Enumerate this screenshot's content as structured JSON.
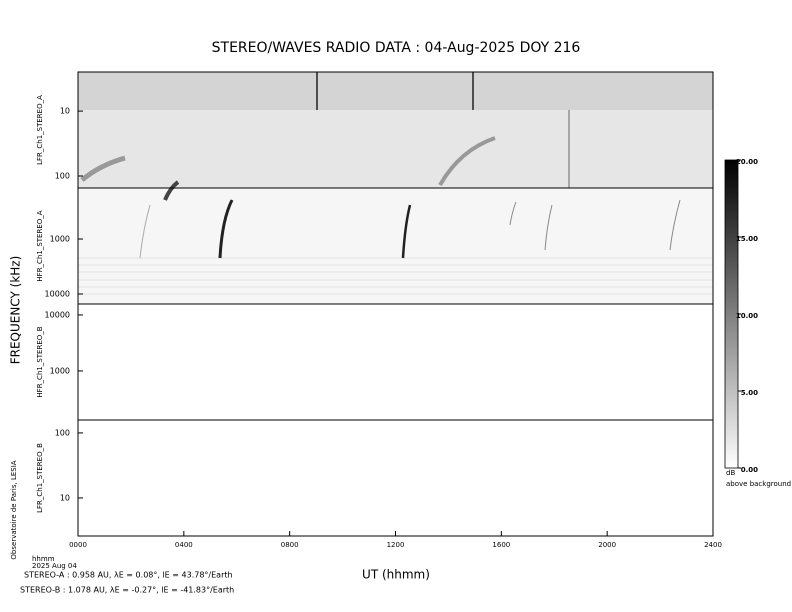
{
  "chart_data": {
    "type": "spectrogram",
    "title": "STEREO/WAVES  RADIO  DATA : 04-Aug-2025  DOY 216",
    "ylabel": "FREQUENCY (kHz)",
    "xlabel": "UT (hhmm)",
    "xlim": [
      0,
      24
    ],
    "xticks": [
      {
        "value": 0,
        "label": "0000"
      },
      {
        "value": 4,
        "label": "0400"
      },
      {
        "value": 8,
        "label": "0800"
      },
      {
        "value": 12,
        "label": "1200"
      },
      {
        "value": 16,
        "label": "1600"
      },
      {
        "value": 20,
        "label": "2000"
      },
      {
        "value": 24,
        "label": "2400"
      }
    ],
    "x_unit_label": "hhmm",
    "date_label": "2025 Aug 04",
    "credit": "Observatoire de Paris, LESIA",
    "panels": [
      {
        "name": "LFR_Ch1_STEREO_A",
        "log": true,
        "inverted": true,
        "ylim": [
          2.5,
          153
        ],
        "yticks": [
          10,
          100
        ]
      },
      {
        "name": "HFR_Ch1_STEREO_A",
        "log": true,
        "inverted": true,
        "ylim": [
          118,
          15200
        ],
        "yticks": [
          1000,
          10000
        ]
      },
      {
        "name": "HFR_Ch1_STEREO_B",
        "log": true,
        "inverted": false,
        "ylim": [
          133,
          15700
        ],
        "yticks": [
          1000,
          10000
        ]
      },
      {
        "name": "LFR_Ch1_STEREO_B",
        "log": true,
        "inverted": false,
        "ylim": [
          2.6,
          158
        ],
        "yticks": [
          10,
          100
        ]
      }
    ],
    "colorbar": {
      "clim": [
        0,
        20
      ],
      "colors": [
        "#ffffff",
        "#000000"
      ],
      "ticks": [
        {
          "value": 0,
          "label": "0.00"
        },
        {
          "value": 5,
          "label": "5.00"
        },
        {
          "value": 10,
          "label": "10.00"
        },
        {
          "value": 15,
          "label": "15.00"
        },
        {
          "value": 20,
          "label": "20.00"
        }
      ],
      "unit": "dB",
      "label": "above background"
    },
    "footnotes": [
      "STEREO-A : 0.958 AU, λE = 0.08°, lE = 43.78°/Earth",
      "STEREO-B : 1.078 AU, λE = -0.27°, lE = -41.83°/Earth"
    ]
  }
}
